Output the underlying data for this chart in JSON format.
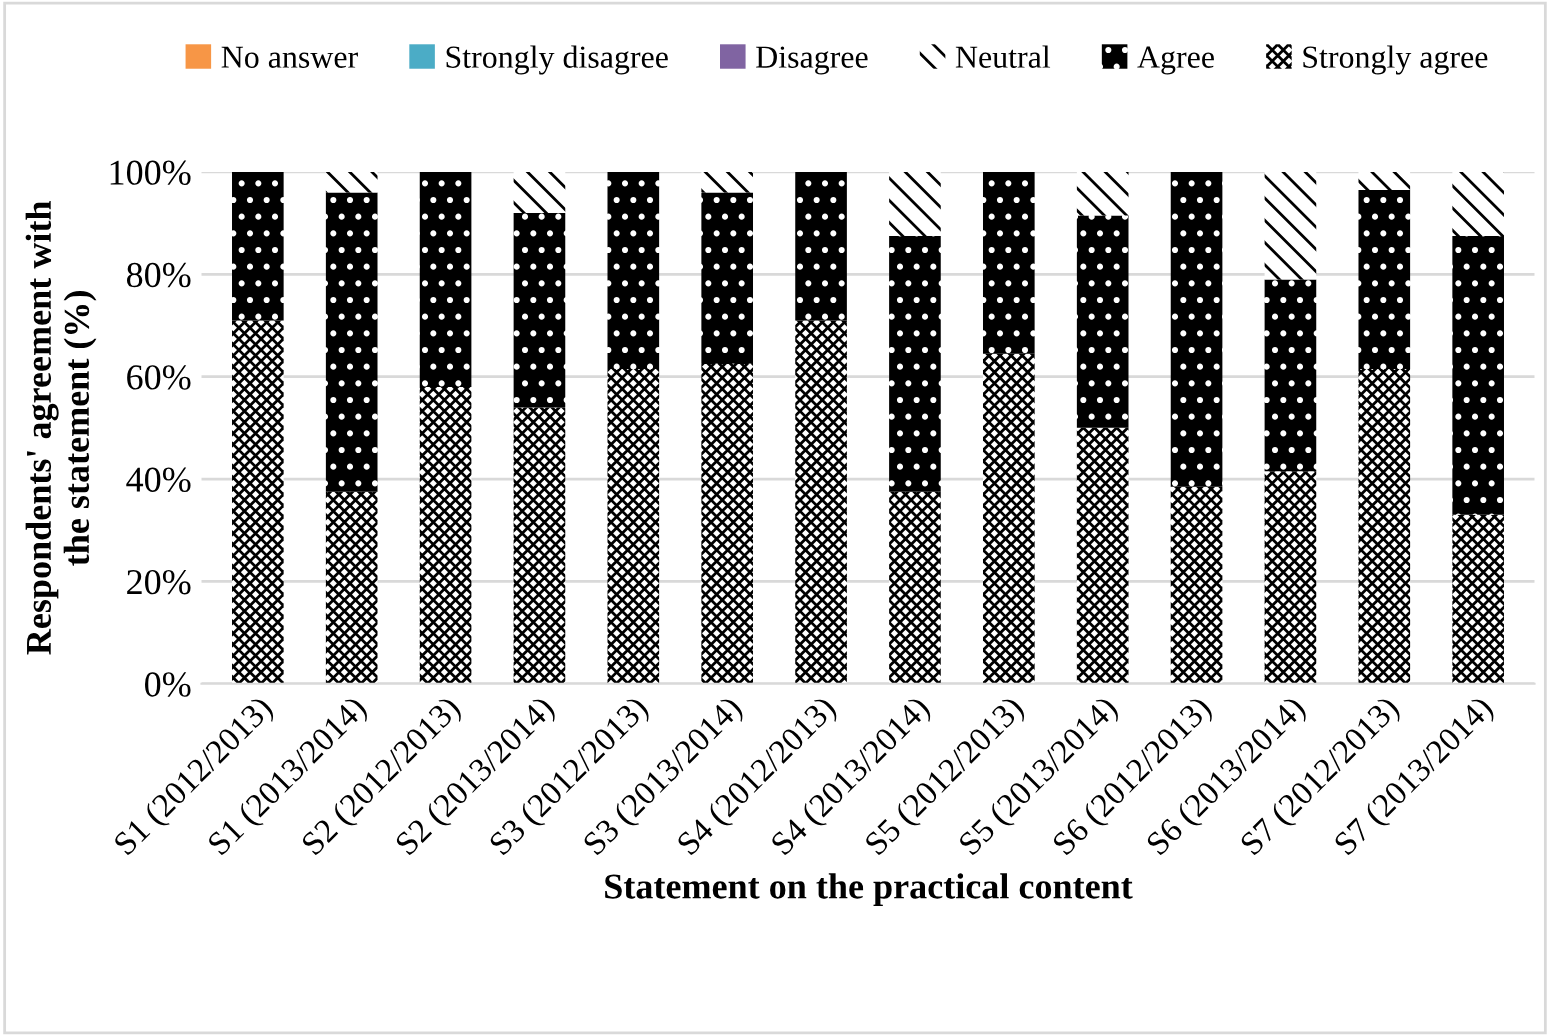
{
  "chart_data": {
    "type": "bar",
    "stacked": true,
    "xlabel": "Statement on the practical content",
    "ylabel": "Respondents' agreement with\nthe statement (%)",
    "categories": [
      "S1 (2012/2013)",
      "S1 (2013/2014)",
      "S2 (2012/2013)",
      "S2 (2013/2014)",
      "S3 (2012/2013)",
      "S3 (2013/2014)",
      "S4 (2012/2013)",
      "S4 (2013/2014)",
      "S5 (2012/2013)",
      "S5 (2013/2014)",
      "S6 (2012/2013)",
      "S6 (2013/2014)",
      "S7 (2012/2013)",
      "S7 (2013/2014)"
    ],
    "series": [
      {
        "name": "Strongly agree",
        "color": "#ffffff",
        "values": [
          71,
          37.5,
          58,
          54,
          61.5,
          62.5,
          71,
          37.5,
          64.5,
          50,
          38.5,
          41.5,
          61.5,
          33
        ]
      },
      {
        "name": "Agree",
        "color": "#000000",
        "values": [
          29,
          58.5,
          42,
          38,
          38.5,
          33.5,
          29,
          50,
          35.5,
          41.5,
          61.5,
          37.5,
          35,
          54.5
        ]
      },
      {
        "name": "Neutral",
        "color": "#ffffff",
        "values": [
          0,
          4,
          0,
          8,
          0,
          4,
          0,
          12.5,
          0,
          8.5,
          0,
          21,
          3.5,
          12.5
        ]
      },
      {
        "name": "Disagree",
        "color": "#8064a2",
        "values": [
          0,
          0,
          0,
          0,
          0,
          0,
          0,
          0,
          0,
          0,
          0,
          0,
          0,
          0
        ]
      },
      {
        "name": "Strongly disagree",
        "color": "#4bacc6",
        "values": [
          0,
          0,
          0,
          0,
          0,
          0,
          0,
          0,
          0,
          0,
          0,
          0,
          0,
          0
        ]
      },
      {
        "name": "No answer",
        "color": "#f79646",
        "values": [
          0,
          0,
          0,
          0,
          0,
          0,
          0,
          0,
          0,
          0,
          0,
          0,
          0,
          0
        ]
      }
    ],
    "ylim": [
      0,
      100
    ],
    "yticks": [
      {
        "value": 0,
        "label": "0%"
      },
      {
        "value": 20,
        "label": "20%"
      },
      {
        "value": 40,
        "label": "40%"
      },
      {
        "value": 60,
        "label": "60%"
      },
      {
        "value": 80,
        "label": "80%"
      },
      {
        "value": 100,
        "label": "100%"
      }
    ],
    "grid": "y",
    "legend": "top"
  }
}
